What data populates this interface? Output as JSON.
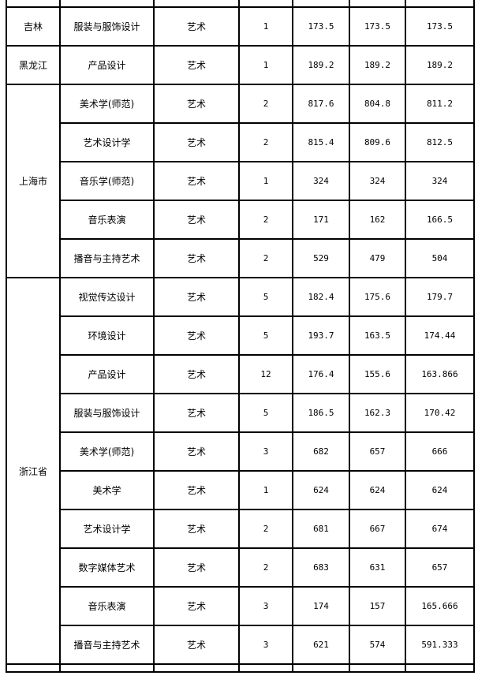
{
  "rows": [
    {
      "province": "吉林",
      "major": "服装与服饰设计",
      "category": "艺术",
      "count": "1",
      "max": "173.5",
      "min": "173.5",
      "avg": "173.5"
    },
    {
      "province": "黑龙江",
      "major": "产品设计",
      "category": "艺术",
      "count": "1",
      "max": "189.2",
      "min": "189.2",
      "avg": "189.2"
    },
    {
      "province": "上海市",
      "major": "美术学(师范)",
      "category": "艺术",
      "count": "2",
      "max": "817.6",
      "min": "804.8",
      "avg": "811.2"
    },
    {
      "province": "",
      "major": "艺术设计学",
      "category": "艺术",
      "count": "2",
      "max": "815.4",
      "min": "809.6",
      "avg": "812.5"
    },
    {
      "province": "",
      "major": "音乐学(师范)",
      "category": "艺术",
      "count": "1",
      "max": "324",
      "min": "324",
      "avg": "324"
    },
    {
      "province": "",
      "major": "音乐表演",
      "category": "艺术",
      "count": "2",
      "max": "171",
      "min": "162",
      "avg": "166.5"
    },
    {
      "province": "",
      "major": "播音与主持艺术",
      "category": "艺术",
      "count": "2",
      "max": "529",
      "min": "479",
      "avg": "504"
    },
    {
      "province": "浙江省",
      "major": "视觉传达设计",
      "category": "艺术",
      "count": "5",
      "max": "182.4",
      "min": "175.6",
      "avg": "179.7"
    },
    {
      "province": "",
      "major": "环境设计",
      "category": "艺术",
      "count": "5",
      "max": "193.7",
      "min": "163.5",
      "avg": "174.44"
    },
    {
      "province": "",
      "major": "产品设计",
      "category": "艺术",
      "count": "12",
      "max": "176.4",
      "min": "155.6",
      "avg": "163.866"
    },
    {
      "province": "",
      "major": "服装与服饰设计",
      "category": "艺术",
      "count": "5",
      "max": "186.5",
      "min": "162.3",
      "avg": "170.42"
    },
    {
      "province": "",
      "major": "美术学(师范)",
      "category": "艺术",
      "count": "3",
      "max": "682",
      "min": "657",
      "avg": "666"
    },
    {
      "province": "",
      "major": "美术学",
      "category": "艺术",
      "count": "1",
      "max": "624",
      "min": "624",
      "avg": "624"
    },
    {
      "province": "",
      "major": "艺术设计学",
      "category": "艺术",
      "count": "2",
      "max": "681",
      "min": "667",
      "avg": "674"
    },
    {
      "province": "",
      "major": "数字媒体艺术",
      "category": "艺术",
      "count": "2",
      "max": "683",
      "min": "631",
      "avg": "657"
    },
    {
      "province": "",
      "major": "音乐表演",
      "category": "艺术",
      "count": "3",
      "max": "174",
      "min": "157",
      "avg": "165.666"
    },
    {
      "province": "",
      "major": "播音与主持艺术",
      "category": "艺术",
      "count": "3",
      "max": "621",
      "min": "574",
      "avg": "591.333"
    }
  ],
  "spans": [
    1,
    1,
    5,
    0,
    0,
    0,
    0,
    10,
    0,
    0,
    0,
    0,
    0,
    0,
    0,
    0,
    0
  ]
}
